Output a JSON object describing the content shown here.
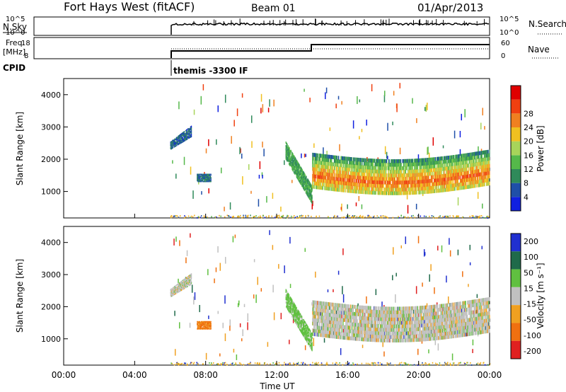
{
  "header": {
    "station": "Fort Hays West (fitACF)",
    "beam": "Beam 01",
    "date": "01/Apr/2013"
  },
  "panels": {
    "nsky": {
      "left_label": "N.Sky",
      "left_ticks": [
        "10^5",
        "10^0"
      ],
      "right_label": "N.Search",
      "right_ticks": [
        "10^5",
        "10^0"
      ]
    },
    "freq": {
      "left_label_line1": "Freq.",
      "left_label_line2": "[MHz]",
      "left_ticks": [
        "18",
        "8"
      ],
      "right_label": "Nave",
      "right_ticks": [
        "60",
        "0"
      ]
    },
    "cpid": {
      "label": "CPID",
      "program": "themis -3300 IF"
    }
  },
  "colors": {
    "power_scale": [
      "#1020e0",
      "#1f4fa8",
      "#2f8a5a",
      "#55b84a",
      "#a8d45a",
      "#f0c020",
      "#f08020",
      "#f04010",
      "#e00000"
    ],
    "velocity_scale": [
      "#2030d0",
      "#1f6a4a",
      "#60c040",
      "#c0c0c0",
      "#f0a020",
      "#f07010",
      "#e02020"
    ],
    "ground": "#f0b020"
  },
  "chart_data": [
    {
      "type": "heatmap",
      "name": "power",
      "ylabel": "Slant Range [km]",
      "xlabel": "",
      "x_unit": "hours UT",
      "xlim": [
        0,
        24
      ],
      "ylim": [
        180,
        4500
      ],
      "y_ticks": [
        1000,
        2000,
        3000,
        4000
      ],
      "colorbar": {
        "label": "Power [dB]",
        "range": [
          0,
          32
        ],
        "ticks": [
          "4",
          "8",
          "12",
          "16",
          "20",
          "24",
          "28"
        ]
      },
      "data_start_hour": 6.0,
      "features": [
        {
          "desc": "early band",
          "t": [
            6.0,
            7.2
          ],
          "range_km": [
            2400,
            3050
          ],
          "power_db": 5
        },
        {
          "desc": "blob",
          "t": [
            7.5,
            8.3
          ],
          "range_km": [
            1300,
            1550
          ],
          "power_db": 6
        },
        {
          "desc": "descending streak",
          "t": [
            12.5,
            14.0
          ],
          "range_km": [
            900,
            2300
          ],
          "power_db": 10
        },
        {
          "desc": "main band",
          "t": [
            14.0,
            24.0
          ],
          "range_km": [
            1000,
            2400
          ],
          "power_db": 18
        },
        {
          "desc": "ground scatter",
          "t": [
            6.0,
            24.0
          ],
          "range_km": [
            180,
            280
          ],
          "power_db": 16
        }
      ]
    },
    {
      "type": "heatmap",
      "name": "velocity",
      "ylabel": "Slant Range [km]",
      "xlabel": "Time UT",
      "x_ticks": [
        "00:00",
        "04:00",
        "08:00",
        "12:00",
        "16:00",
        "20:00",
        "00:00"
      ],
      "xlim": [
        0,
        24
      ],
      "ylim": [
        180,
        4500
      ],
      "y_ticks": [
        1000,
        2000,
        3000,
        4000
      ],
      "colorbar": {
        "label": "Velocity [m s⁻¹]",
        "ticks": [
          "200",
          "100",
          "50",
          "15",
          "-15",
          "-50",
          "-100",
          "-200"
        ]
      },
      "features": [
        {
          "desc": "early band",
          "t": [
            6.0,
            7.2
          ],
          "range_km": [
            2400,
            3050
          ],
          "velocity": 0
        },
        {
          "desc": "blob",
          "t": [
            7.5,
            8.3
          ],
          "range_km": [
            1300,
            1550
          ],
          "velocity": -60
        },
        {
          "desc": "descending streak",
          "t": [
            12.5,
            14.0
          ],
          "range_km": [
            900,
            2300
          ],
          "velocity": 30
        },
        {
          "desc": "main band",
          "t": [
            14.0,
            24.0
          ],
          "range_km": [
            1000,
            2400
          ],
          "velocity": 0
        }
      ]
    }
  ]
}
